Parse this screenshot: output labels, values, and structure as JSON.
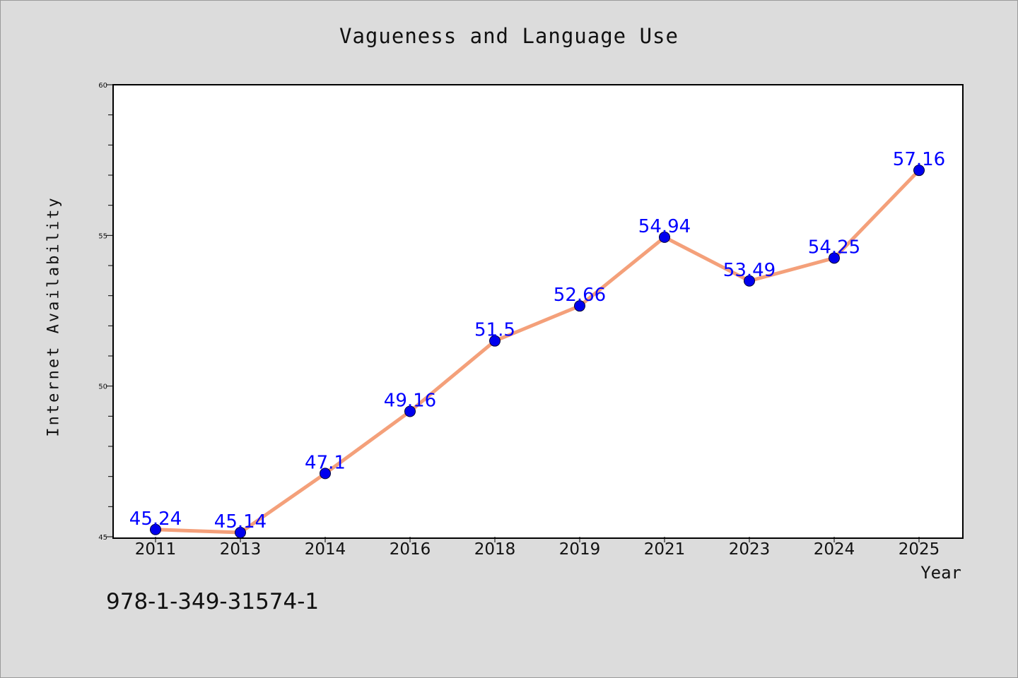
{
  "chart_data": {
    "type": "line",
    "title": "Vagueness and Language Use",
    "xlabel": "Year",
    "ylabel": "Internet Availability",
    "categories": [
      "2011",
      "2013",
      "2014",
      "2016",
      "2018",
      "2019",
      "2021",
      "2023",
      "2024",
      "2025"
    ],
    "series": [
      {
        "values": [
          45.24,
          45.14,
          47.1,
          49.16,
          51.5,
          52.66,
          54.94,
          53.49,
          54.25,
          57.16
        ],
        "line_color": "#f4a07a",
        "marker_color": "#0000ee"
      }
    ],
    "ylim": [
      45,
      60
    ],
    "yticks": [
      "45",
      "50",
      "55",
      "60"
    ],
    "data_labels": [
      "45.24",
      "45.14",
      "47.1",
      "49.16",
      "51.5",
      "52.66",
      "54.94",
      "53.49",
      "54.25",
      "57.16"
    ],
    "data_label_color": "#0000ff",
    "grid": false,
    "legend": false
  },
  "footer": {
    "id_text": "978-1-349-31574-1"
  }
}
